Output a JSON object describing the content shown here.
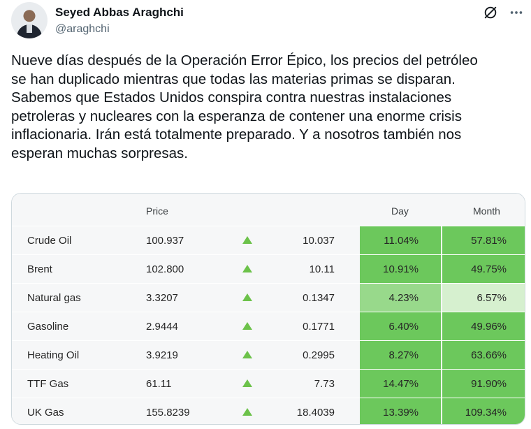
{
  "author": {
    "name": "Seyed Abbas Araghchi",
    "handle": "@araghchi"
  },
  "tweet": {
    "lines": [
      "Nueve días después de la Operación Error Épico, los precios del petróleo",
      "se han duplicado mientras que todas las materias primas se disparan.",
      "Sabemos que Estados Unidos conspira contra nuestras instalaciones",
      "petroleras y nucleares con la esperanza de contener una enorme crisis",
      "inflacionaria. Irán está totalmente preparado. Y a nosotros también nos",
      "esperan muchas sorpresas."
    ]
  },
  "icons": {
    "grok": "grok-slash-icon",
    "more": "more-dots-icon"
  },
  "table": {
    "headers": {
      "price": "Price",
      "day": "Day",
      "month": "Month"
    },
    "rows": [
      {
        "name": "Crude Oil",
        "price": "100.937",
        "change": "10.037",
        "day": "11.04%",
        "month": "57.81%",
        "day_color": "#6cc85c",
        "month_color": "#6cc85c"
      },
      {
        "name": "Brent",
        "price": "102.800",
        "change": "10.11",
        "day": "10.91%",
        "month": "49.75%",
        "day_color": "#6cc85c",
        "month_color": "#6cc85c"
      },
      {
        "name": "Natural gas",
        "price": "3.3207",
        "change": "0.1347",
        "day": "4.23%",
        "month": "6.57%",
        "day_color": "#98d98b",
        "month_color": "#d6f0cf"
      },
      {
        "name": "Gasoline",
        "price": "2.9444",
        "change": "0.1771",
        "day": "6.40%",
        "month": "49.96%",
        "day_color": "#6cc85c",
        "month_color": "#6cc85c"
      },
      {
        "name": "Heating Oil",
        "price": "3.9219",
        "change": "0.2995",
        "day": "8.27%",
        "month": "63.66%",
        "day_color": "#6cc85c",
        "month_color": "#6cc85c"
      },
      {
        "name": "TTF Gas",
        "price": "61.11",
        "change": "7.73",
        "day": "14.47%",
        "month": "91.90%",
        "day_color": "#6cc85c",
        "month_color": "#6cc85c"
      },
      {
        "name": "UK Gas",
        "price": "155.8239",
        "change": "18.4039",
        "day": "13.39%",
        "month": "109.34%",
        "day_color": "#6cc85c",
        "month_color": "#6cc85c"
      }
    ]
  }
}
